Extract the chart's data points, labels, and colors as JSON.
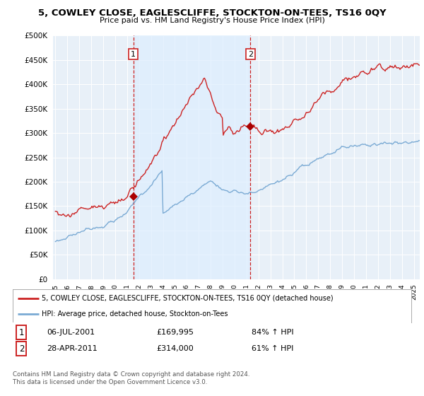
{
  "title": "5, COWLEY CLOSE, EAGLESCLIFFE, STOCKTON-ON-TEES, TS16 0QY",
  "subtitle": "Price paid vs. HM Land Registry's House Price Index (HPI)",
  "legend_line1": "5, COWLEY CLOSE, EAGLESCLIFFE, STOCKTON-ON-TEES, TS16 0QY (detached house)",
  "legend_line2": "HPI: Average price, detached house, Stockton-on-Tees",
  "transaction1_date": "06-JUL-2001",
  "transaction1_price": "£169,995",
  "transaction1_hpi": "84% ↑ HPI",
  "transaction1_year": 2001.52,
  "transaction1_value": 169995,
  "transaction2_date": "28-APR-2011",
  "transaction2_price": "£314,000",
  "transaction2_hpi": "61% ↑ HPI",
  "transaction2_year": 2011.32,
  "transaction2_value": 314000,
  "footer": "Contains HM Land Registry data © Crown copyright and database right 2024.\nThis data is licensed under the Open Government Licence v3.0.",
  "hpi_color": "#7aaad4",
  "price_color": "#cc2222",
  "marker_color": "#aa0000",
  "vline_color": "#cc2222",
  "shade_color": "#ddeeff",
  "ylim": [
    0,
    500000
  ],
  "yticks": [
    0,
    50000,
    100000,
    150000,
    200000,
    250000,
    300000,
    350000,
    400000,
    450000,
    500000
  ],
  "xmin": 1994.8,
  "xmax": 2025.5
}
